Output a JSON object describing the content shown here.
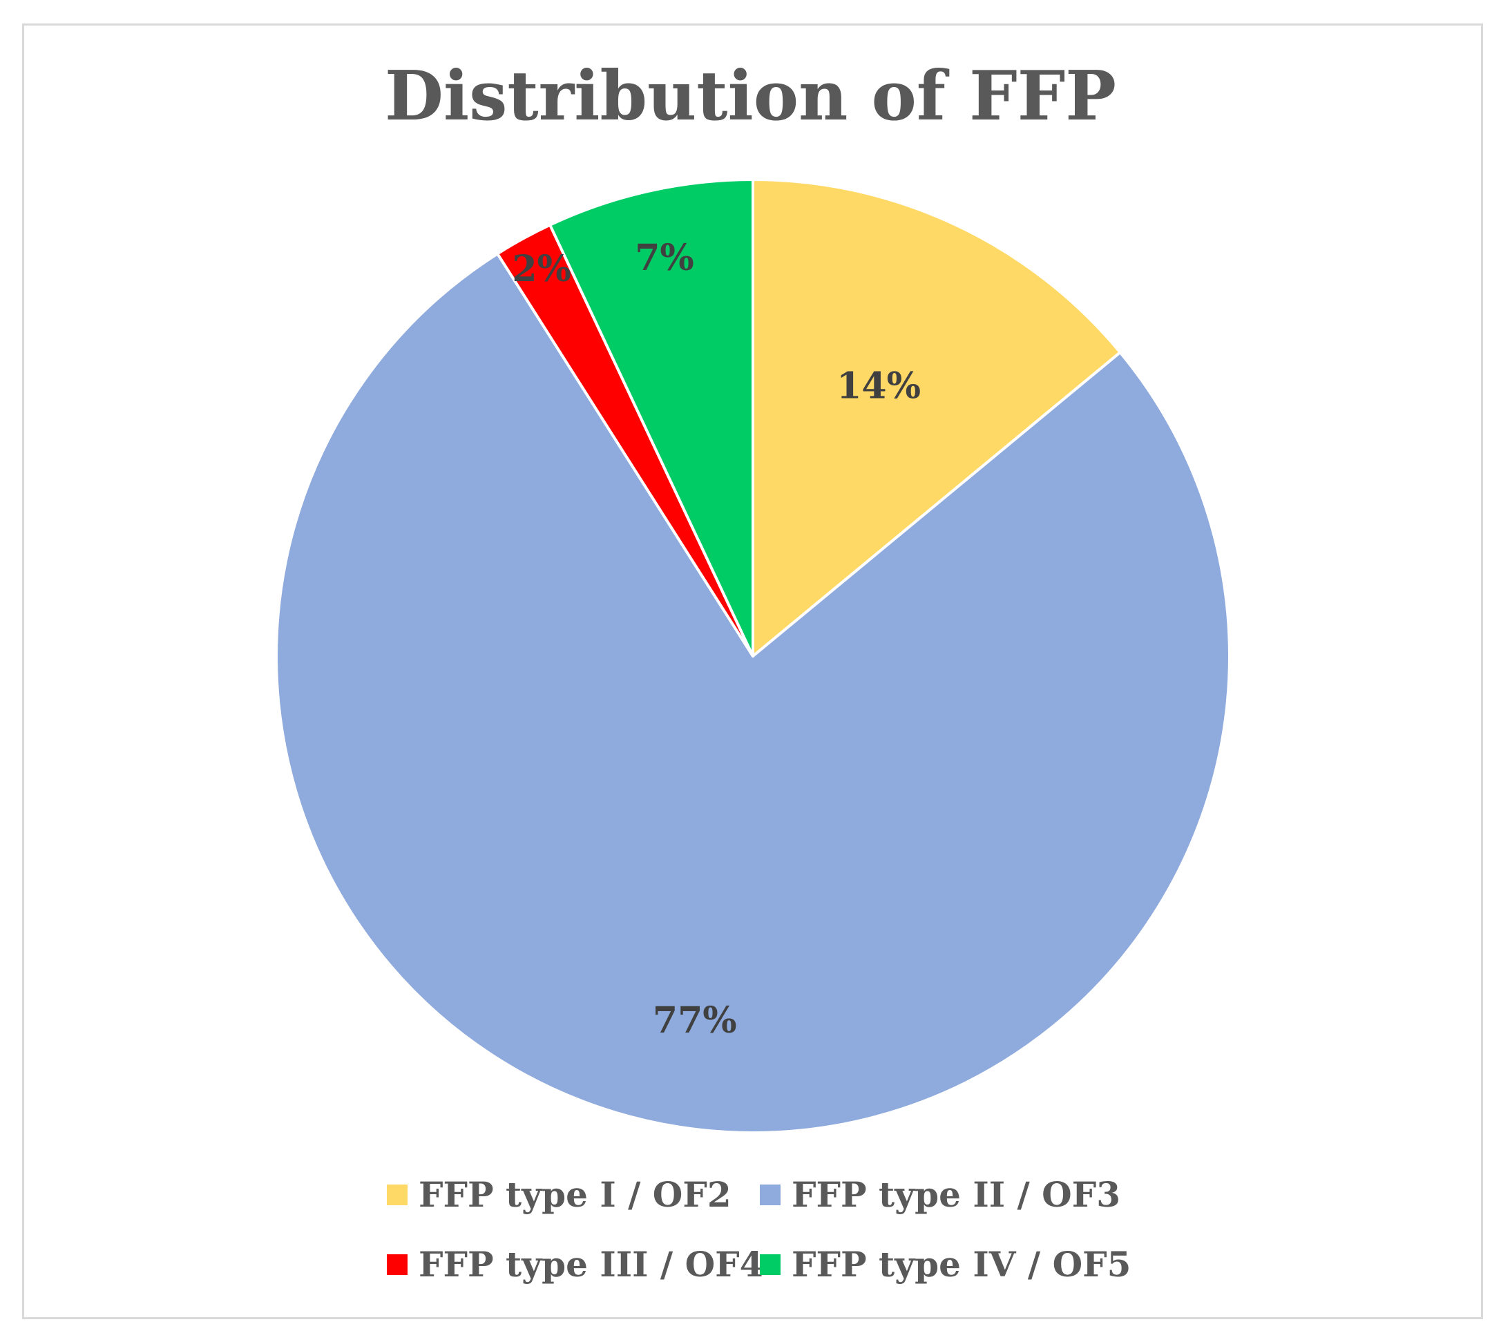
{
  "chart_data": {
    "type": "pie",
    "title": "Distribution of FFP",
    "categories": [
      "FFP type I / OF2",
      "FFP type II / OF3",
      "FFP type III / OF4",
      "FFP type IV / OF5"
    ],
    "values": [
      14,
      77,
      2,
      7
    ],
    "data_labels": [
      "14%",
      "77%",
      "2%",
      "7%"
    ],
    "colors": [
      "#FFD966",
      "#8FAADC",
      "#FF0000",
      "#00CC66"
    ],
    "start_angle": "12 o'clock",
    "direction": "clockwise",
    "legend": "bottom"
  }
}
